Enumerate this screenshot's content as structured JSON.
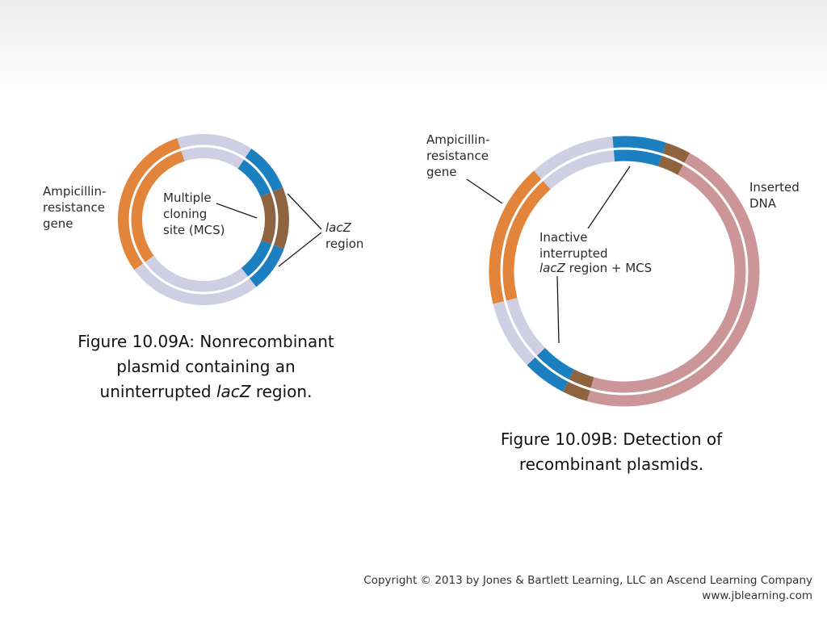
{
  "colors": {
    "ampicillin": "#e2843a",
    "backbone": "#cfcfe3",
    "lacz": "#1c7fc0",
    "mcs": "#8e6440",
    "insert": "#cc9598",
    "separator": "#ffffff",
    "leader": "#1a1a1a"
  },
  "figure_a": {
    "labels": {
      "ampicillin": [
        "Ampicillin-",
        "resistance",
        "gene"
      ],
      "mcs": [
        "Multiple",
        "cloning",
        "site (MCS)"
      ],
      "lacz_italic": "lacZ",
      "lacz_region": "region"
    },
    "caption": {
      "line1": "Figure 10.09A: Nonrecombinant",
      "line2": "plasmid containing an",
      "line3_pre": "uninterrupted ",
      "line3_italic": "lacZ",
      "line3_post": " region."
    }
  },
  "figure_b": {
    "labels": {
      "ampicillin": [
        "Ampicillin-",
        "resistance",
        "gene"
      ],
      "inserted": [
        "Inserted",
        "DNA"
      ],
      "inactive_line1": "Inactive",
      "inactive_line2": "interrupted",
      "inactive_italic": "lacZ",
      "inactive_post": " region + MCS"
    },
    "caption": {
      "line1": "Figure 10.09B: Detection of",
      "line2": "recombinant plasmids."
    }
  },
  "copyright": {
    "line1": "Copyright © 2013 by Jones & Bartlett Learning, LLC an Ascend Learning Company",
    "line2": "www.jblearning.com"
  }
}
